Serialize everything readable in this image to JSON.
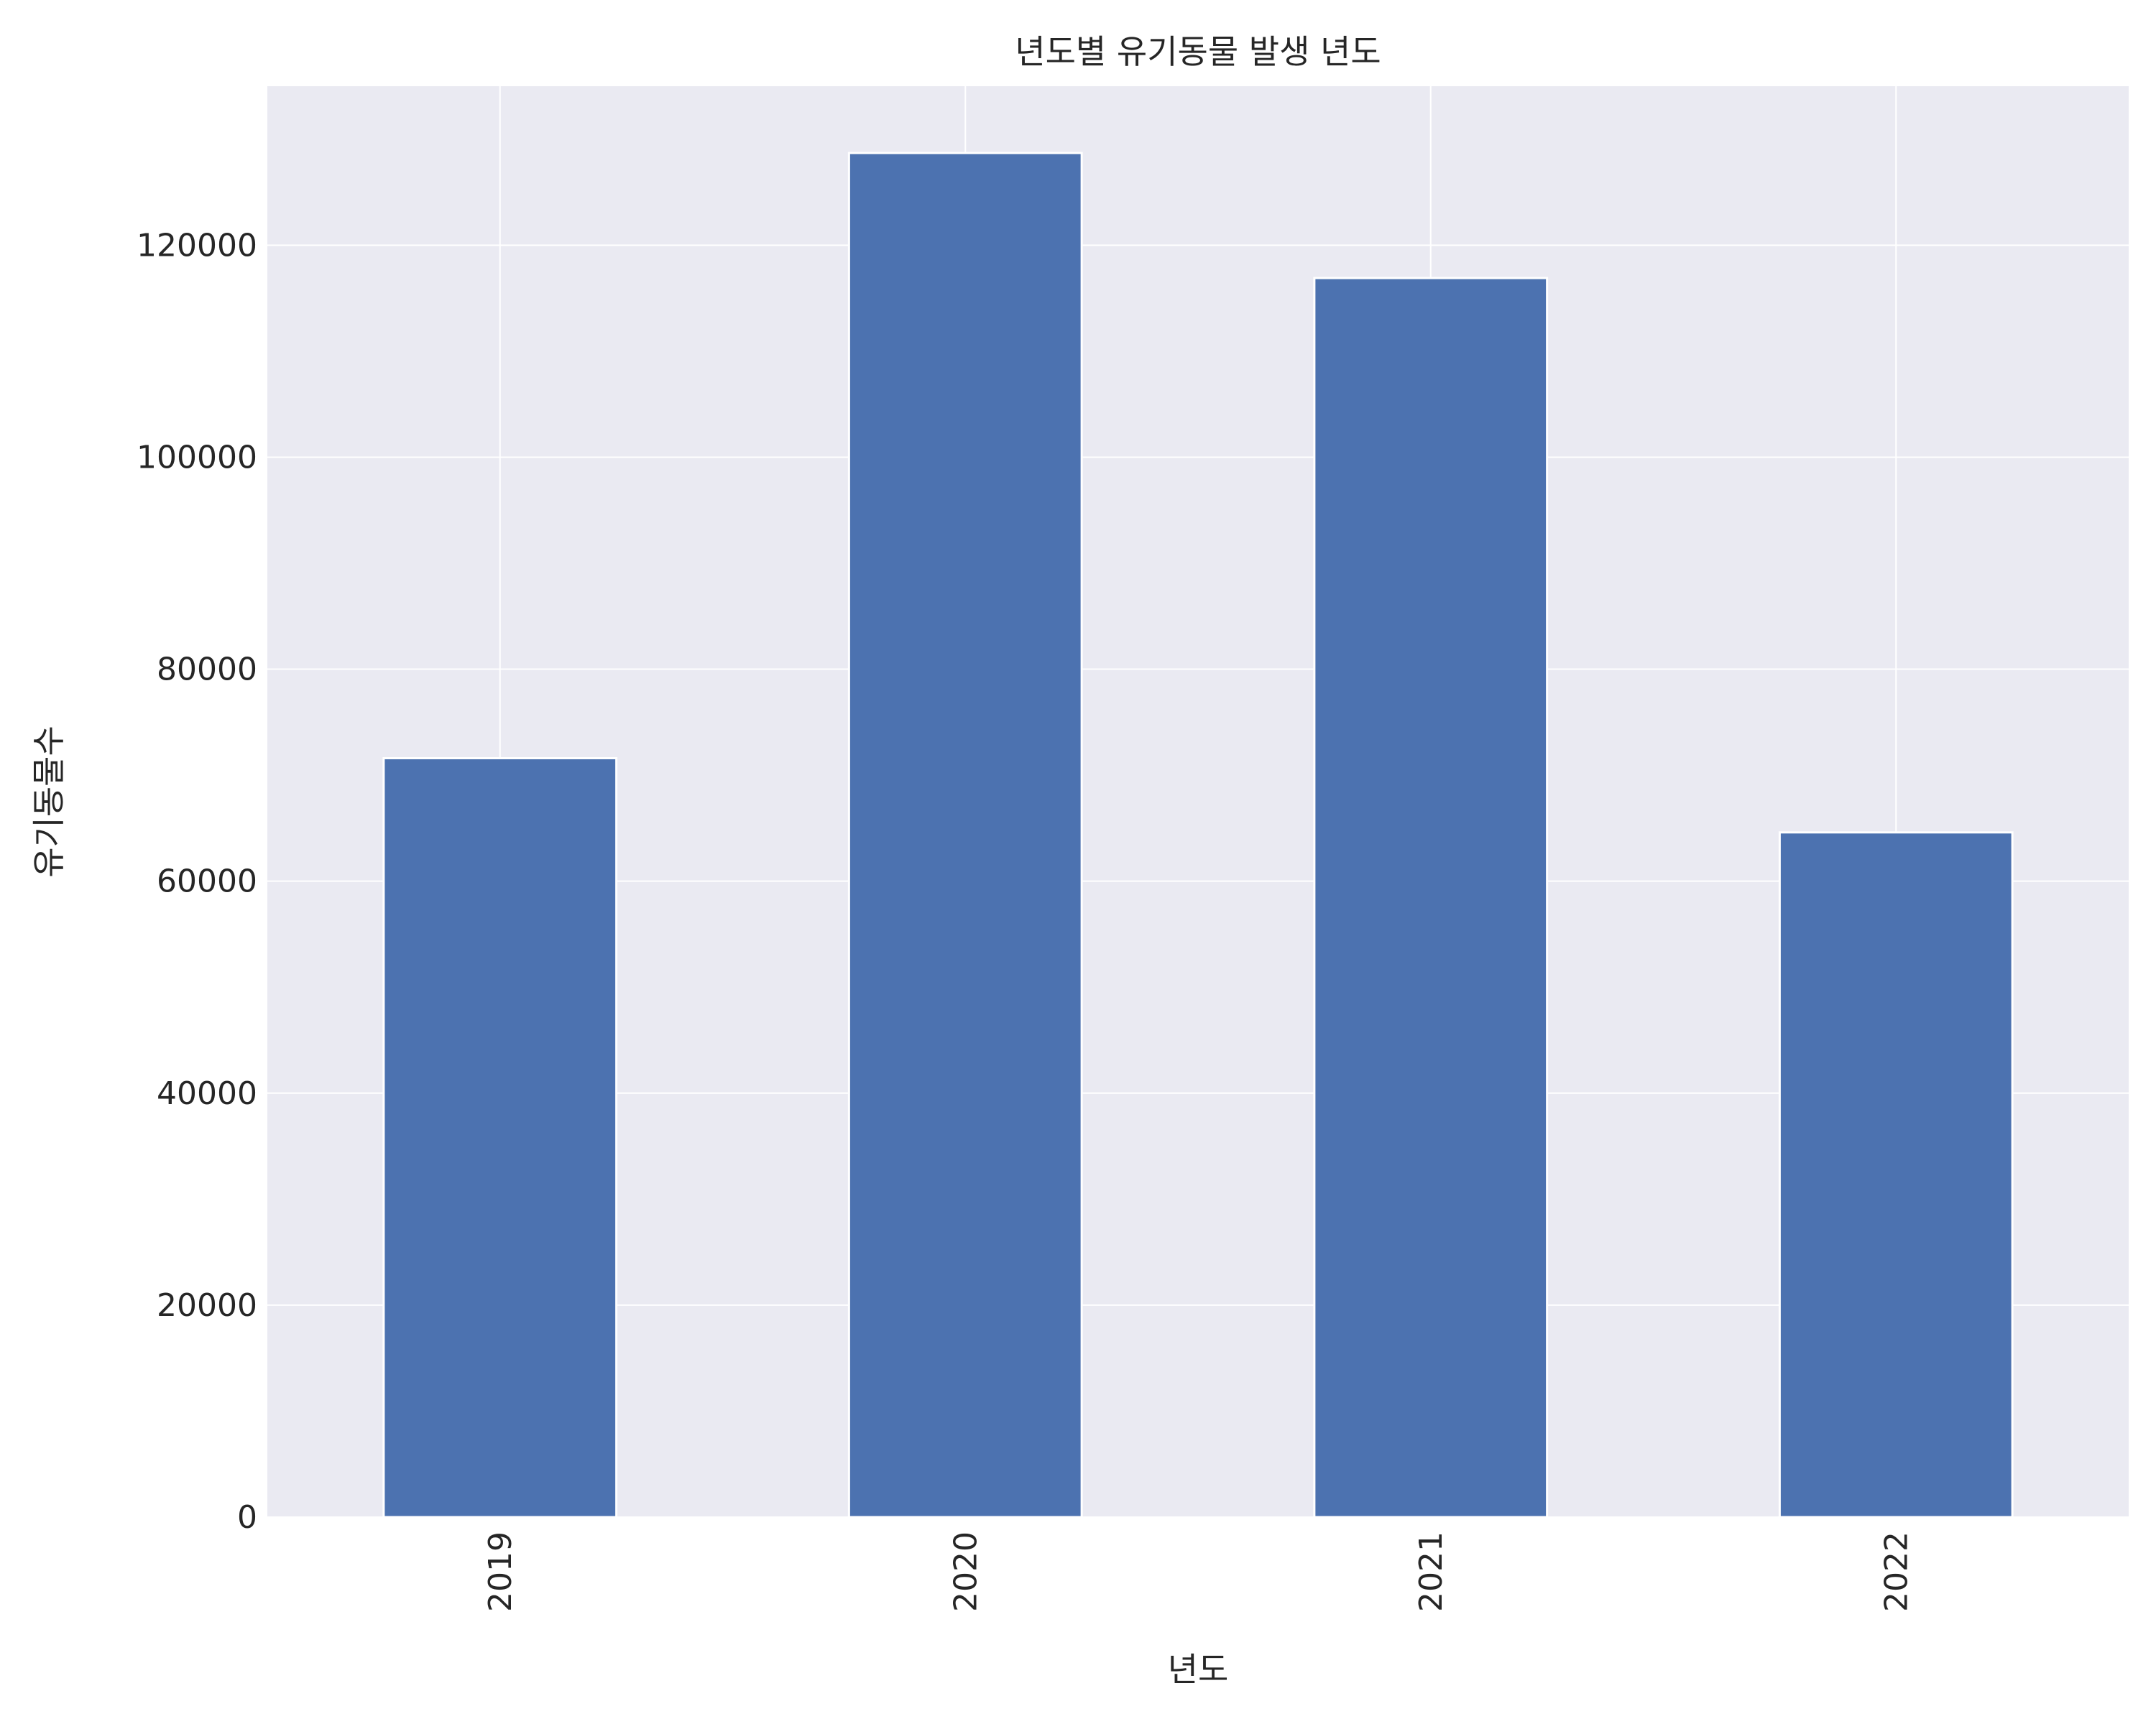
{
  "chart_data": {
    "type": "bar",
    "title": "년도별 유기동물 발생 년도",
    "xlabel": "년도",
    "ylabel": "유기동물수",
    "categories": [
      "2019",
      "2020",
      "2021",
      "2022"
    ],
    "values": [
      71600,
      128700,
      116900,
      64600
    ],
    "ylim": [
      0,
      135000
    ],
    "yticks": [
      0,
      20000,
      40000,
      60000,
      80000,
      100000,
      120000
    ],
    "ytick_labels": [
      "0",
      "20000",
      "40000",
      "60000",
      "80000",
      "100000",
      "120000"
    ],
    "grid": true,
    "colors": {
      "bar": "#4c72b0",
      "plot_bg": "#eaeaf2",
      "grid": "#ffffff",
      "text": "#262626"
    }
  }
}
